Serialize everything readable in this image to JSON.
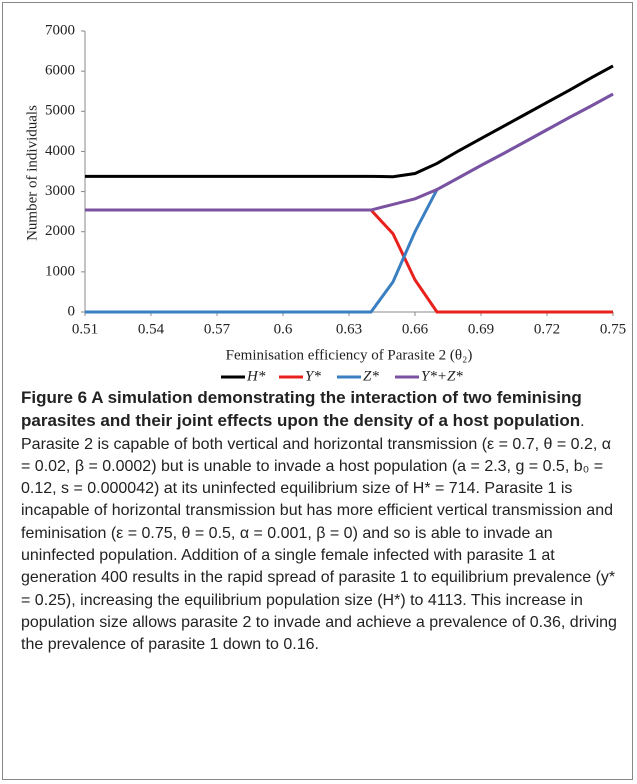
{
  "chart_data": {
    "type": "line",
    "y_label": "Number of individuals",
    "x_label": "Feminisation efficiency of Parasite 2 (θ₂)",
    "x": [
      0.51,
      0.52,
      0.53,
      0.54,
      0.55,
      0.56,
      0.57,
      0.58,
      0.59,
      0.6,
      0.61,
      0.62,
      0.63,
      0.64,
      0.65,
      0.66,
      0.67,
      0.68,
      0.69,
      0.7,
      0.71,
      0.72,
      0.73,
      0.74,
      0.75
    ],
    "xlim": [
      0.51,
      0.75
    ],
    "xticks": [
      0.51,
      0.54,
      0.57,
      {
        "value": 0.6,
        "label": "0.6"
      },
      0.63,
      0.66,
      0.69,
      0.72,
      0.75
    ],
    "ylim": [
      0,
      7000
    ],
    "yticks": [
      0,
      1000,
      2000,
      3000,
      4000,
      5000,
      6000,
      7000
    ],
    "legend": "bottom",
    "series": [
      {
        "name": "H*",
        "color": "#000000",
        "values": [
          3380,
          3380,
          3380,
          3380,
          3380,
          3380,
          3380,
          3380,
          3380,
          3380,
          3380,
          3380,
          3380,
          3380,
          3370,
          3450,
          3700,
          4020,
          4320,
          4620,
          4920,
          5220,
          5520,
          5830,
          6130
        ]
      },
      {
        "name": "Y*",
        "color": "#e8211d",
        "values": [
          2540,
          2540,
          2540,
          2540,
          2540,
          2540,
          2540,
          2540,
          2540,
          2540,
          2540,
          2540,
          2540,
          2540,
          1950,
          800,
          0,
          0,
          0,
          0,
          0,
          0,
          0,
          0,
          0
        ]
      },
      {
        "name": "Z*",
        "color": "#3a7fc1",
        "values": [
          0,
          0,
          0,
          0,
          0,
          0,
          0,
          0,
          0,
          0,
          0,
          0,
          0,
          0,
          750,
          2000,
          3050,
          3350,
          3650,
          3940,
          4240,
          4540,
          4840,
          5130,
          5430
        ]
      },
      {
        "name": "Y*+Z*",
        "color": "#7b52a1",
        "values": [
          2540,
          2540,
          2540,
          2540,
          2540,
          2540,
          2540,
          2540,
          2540,
          2540,
          2540,
          2540,
          2540,
          2540,
          2680,
          2820,
          3050,
          3350,
          3650,
          3940,
          4240,
          4540,
          4840,
          5130,
          5430
        ]
      }
    ]
  },
  "caption": {
    "label": "Figure 6",
    "title": " A simulation demonstrating the interaction of two feminising parasites and their joint effects upon the density of a host population",
    "text": ". Parasite 2 is capable of both vertical and horizontal transmission (ε = 0.7, θ = 0.2, α = 0.02, β = 0.0002) but is unable to invade a host population (a = 2.3, g = 0.5, b₀ = 0.12, s = 0.000042) at its uninfected equilibrium size of H* = 714. Parasite 1 is incapable of horizontal transmission but has more efficient vertical transmission and feminisation (ε = 0.75, θ = 0.5, α = 0.001, β = 0) and so is able to invade an uninfected population. Addition of a single female infected with parasite 1 at generation 400 results in the rapid spread of parasite 1 to equilibrium prevalence (y* = 0.25), increasing the equilibrium population size (H*) to 4113. This increase in population size allows parasite 2 to invade and achieve a prevalence of 0.36, driving the prevalence of parasite 1 down to 0.16."
  }
}
